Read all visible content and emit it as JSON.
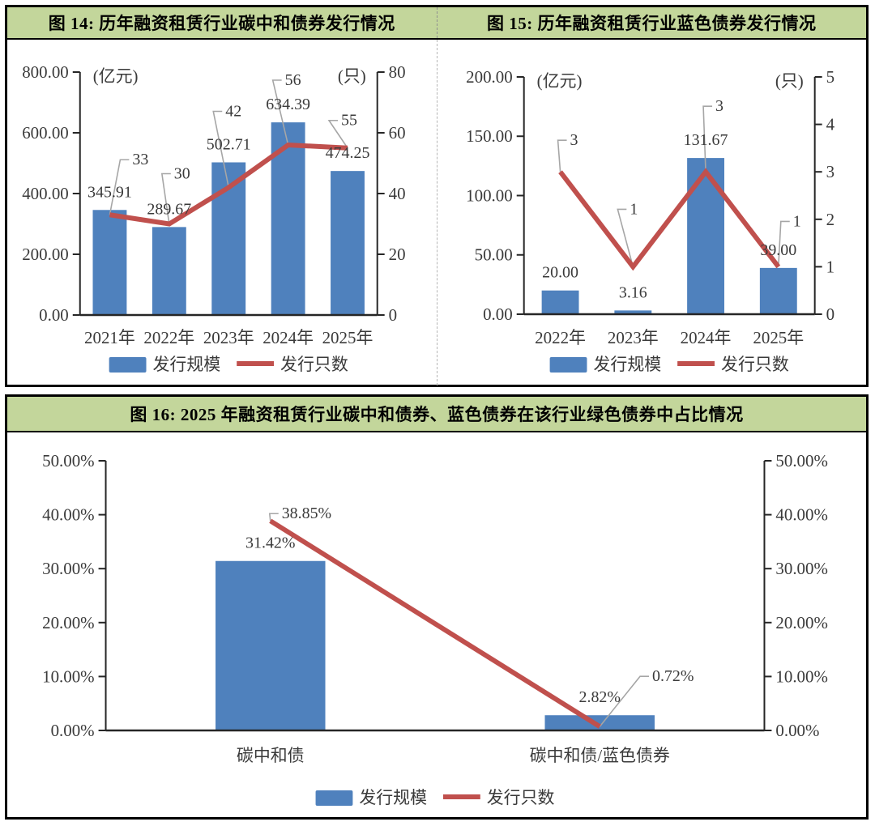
{
  "figures": [
    {
      "title_full": "图 14:  历年融资租赁行业碳中和债券发行情况"
    },
    {
      "title_full": "图 15:  历年融资租赁行业蓝色债券发行情况"
    },
    {
      "title_full": "图 16:  2025 年融资租赁行业碳中和债券、蓝色债券在该行业绿色债券中占比情况"
    }
  ],
  "colors": {
    "header_bg": "#c3d69b",
    "bar": "#4f81bd",
    "line": "#c0504d",
    "leader": "#a6a6a6",
    "text": "#3a3a3a",
    "axis": "#262626",
    "border": "#000000"
  },
  "chart_data": [
    {
      "type": "bar+line",
      "figure": "图 14",
      "title": "历年融资租赁行业碳中和债券发行情况",
      "categories": [
        "2021年",
        "2022年",
        "2023年",
        "2024年",
        "2025年"
      ],
      "series": [
        {
          "name": "发行规模",
          "type": "bar",
          "axis": "left",
          "values": [
            345.91,
            289.67,
            502.71,
            634.39,
            474.25
          ],
          "labels": [
            "345.91",
            "289.67",
            "502.71",
            "634.39",
            "474.25"
          ]
        },
        {
          "name": "发行只数",
          "type": "line",
          "axis": "right",
          "values": [
            33,
            30,
            42,
            56,
            55
          ],
          "labels": [
            "33",
            "30",
            "42",
            "56",
            "55"
          ]
        }
      ],
      "left_axis": {
        "unit": "(亿元)",
        "min": 0,
        "max": 800,
        "ticks": [
          "0.00",
          "200.00",
          "400.00",
          "600.00",
          "800.00"
        ]
      },
      "right_axis": {
        "unit": "(只)",
        "min": 0,
        "max": 80,
        "ticks": [
          "0",
          "20",
          "40",
          "60",
          "80"
        ]
      },
      "legend": {
        "position": "bottom",
        "items": [
          "发行规模",
          "发行只数"
        ]
      }
    },
    {
      "type": "bar+line",
      "figure": "图 15",
      "title": "历年融资租赁行业蓝色债券发行情况",
      "categories": [
        "2022年",
        "2023年",
        "2024年",
        "2025年"
      ],
      "series": [
        {
          "name": "发行规模",
          "type": "bar",
          "axis": "left",
          "values": [
            20.0,
            3.16,
            131.67,
            39.0
          ],
          "labels": [
            "20.00",
            "3.16",
            "131.67",
            "39.00"
          ]
        },
        {
          "name": "发行只数",
          "type": "line",
          "axis": "right",
          "values": [
            3,
            1,
            3,
            1
          ],
          "labels": [
            "3",
            "1",
            "3",
            "1"
          ]
        }
      ],
      "left_axis": {
        "unit": "(亿元)",
        "min": 0,
        "max": 200,
        "ticks": [
          "0.00",
          "50.00",
          "100.00",
          "150.00",
          "200.00"
        ]
      },
      "right_axis": {
        "unit": "(只)",
        "min": 0,
        "max": 5,
        "ticks": [
          "0",
          "1",
          "2",
          "3",
          "4",
          "5"
        ]
      },
      "legend": {
        "position": "bottom",
        "items": [
          "发行规模",
          "发行只数"
        ]
      }
    },
    {
      "type": "bar+line",
      "figure": "图 16",
      "title": "2025 年融资租赁行业碳中和债券、蓝色债券在该行业绿色债券中占比情况",
      "categories": [
        "碳中和债",
        "碳中和债/蓝色债券"
      ],
      "series": [
        {
          "name": "发行规模",
          "type": "bar",
          "axis": "left",
          "values": [
            31.42,
            2.82
          ],
          "labels": [
            "31.42%",
            "2.82%"
          ]
        },
        {
          "name": "发行只数",
          "type": "line",
          "axis": "right",
          "values": [
            38.85,
            0.72
          ],
          "labels": [
            "38.85%",
            "0.72%"
          ]
        }
      ],
      "left_axis": {
        "unit": "",
        "min": 0,
        "max": 50,
        "ticks": [
          "0.00%",
          "10.00%",
          "20.00%",
          "30.00%",
          "40.00%",
          "50.00%"
        ]
      },
      "right_axis": {
        "unit": "",
        "min": 0,
        "max": 50,
        "ticks": [
          "0.00%",
          "10.00%",
          "20.00%",
          "30.00%",
          "40.00%",
          "50.00%"
        ]
      },
      "legend": {
        "position": "bottom",
        "items": [
          "发行规模",
          "发行只数"
        ]
      }
    }
  ]
}
